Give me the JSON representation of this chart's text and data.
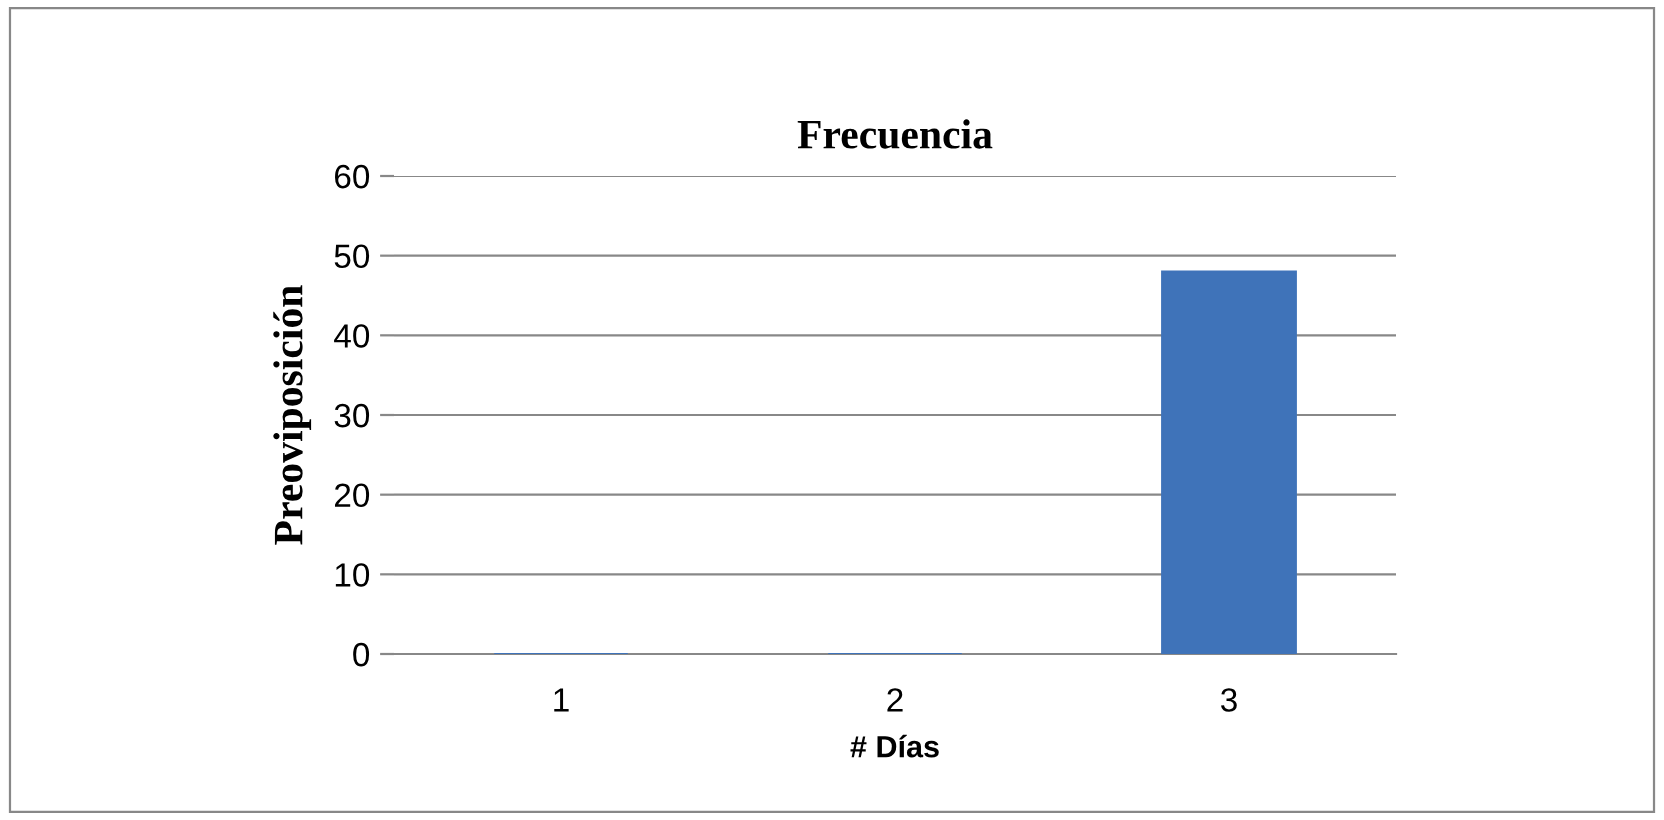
{
  "chart_data": {
    "type": "bar",
    "title": "Frecuencia",
    "xlabel": "# Días",
    "ylabel": "Preoviposición",
    "categories": [
      "1",
      "2",
      "3"
    ],
    "values": [
      0,
      0,
      48
    ],
    "color": "#3f73b9",
    "ylim": [
      0,
      60
    ],
    "yticks": [
      0,
      10,
      20,
      30,
      40,
      50,
      60
    ],
    "grid": "y",
    "legend": false
  }
}
